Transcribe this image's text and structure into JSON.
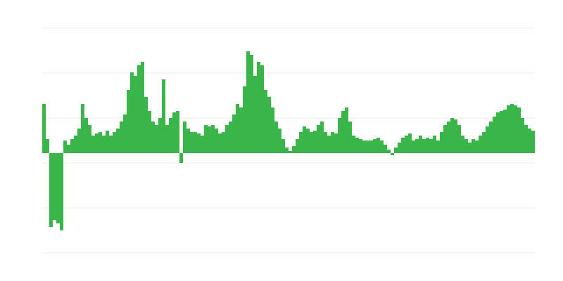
{
  "chart_data": {
    "type": "bar",
    "values": [
      70,
      20,
      -105,
      -95,
      -100,
      -110,
      18,
      12,
      20,
      25,
      35,
      70,
      50,
      40,
      25,
      28,
      30,
      25,
      32,
      25,
      30,
      35,
      45,
      55,
      90,
      115,
      110,
      125,
      130,
      80,
      60,
      45,
      40,
      50,
      105,
      40,
      50,
      58,
      60,
      -14,
      45,
      35,
      30,
      30,
      28,
      25,
      40,
      38,
      40,
      35,
      28,
      30,
      40,
      45,
      55,
      70,
      65,
      95,
      145,
      140,
      110,
      130,
      125,
      90,
      80,
      65,
      45,
      35,
      20,
      8,
      3,
      10,
      20,
      30,
      38,
      35,
      30,
      32,
      40,
      45,
      30,
      25,
      30,
      28,
      50,
      60,
      65,
      45,
      25,
      22,
      20,
      18,
      18,
      18,
      20,
      22,
      18,
      12,
      5,
      -3,
      8,
      15,
      22,
      25,
      28,
      18,
      20,
      25,
      20,
      22,
      20,
      25,
      18,
      30,
      40,
      45,
      50,
      48,
      40,
      25,
      20,
      15,
      20,
      18,
      25,
      30,
      38,
      45,
      52,
      58,
      60,
      62,
      68,
      70,
      68,
      65,
      50,
      40,
      35,
      32
    ],
    "color": "#3ab54a",
    "ylim": [
      -142,
      178
    ],
    "yticks": [
      -142,
      -78,
      -14,
      50,
      114,
      178
    ],
    "grid": true
  }
}
